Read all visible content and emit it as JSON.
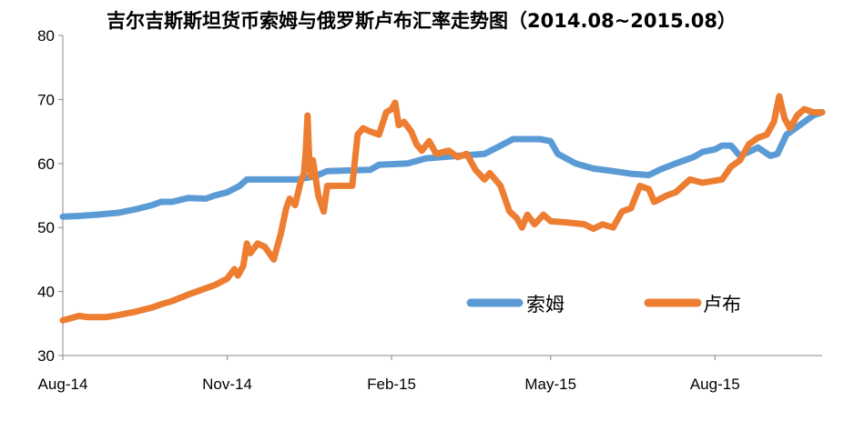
{
  "chart_data": {
    "type": "line",
    "title": "吉尔吉斯斯坦货币索姆与俄罗斯卢布汇率走势图（2014.08~2015.08）",
    "xlabel": "",
    "ylabel": "",
    "ylim": [
      30,
      80
    ],
    "y_ticks": [
      "30",
      "40",
      "50",
      "60",
      "70",
      "80"
    ],
    "x_ticks": [
      "Aug-14",
      "Nov-14",
      "Feb-15",
      "May-15",
      "Aug-15"
    ],
    "grid": false,
    "legend_position": "bottom-right",
    "series": [
      {
        "name": "索姆",
        "color": "#5B9BD5",
        "points": [
          [
            "2014-08-01",
            51.7
          ],
          [
            "2014-08-10",
            51.8
          ],
          [
            "2014-08-20",
            52.0
          ],
          [
            "2014-09-01",
            52.3
          ],
          [
            "2014-09-10",
            52.8
          ],
          [
            "2014-09-20",
            53.5
          ],
          [
            "2014-09-25",
            54.0
          ],
          [
            "2014-10-01",
            54.0
          ],
          [
            "2014-10-10",
            54.6
          ],
          [
            "2014-10-20",
            54.5
          ],
          [
            "2014-10-25",
            55.0
          ],
          [
            "2014-11-01",
            55.5
          ],
          [
            "2014-11-08",
            56.5
          ],
          [
            "2014-11-12",
            57.5
          ],
          [
            "2014-11-20",
            57.5
          ],
          [
            "2014-12-10",
            57.5
          ],
          [
            "2014-12-20",
            58.0
          ],
          [
            "2014-12-27",
            58.8
          ],
          [
            "2015-01-20",
            59.0
          ],
          [
            "2015-01-25",
            59.8
          ],
          [
            "2015-02-10",
            60.0
          ],
          [
            "2015-02-20",
            60.8
          ],
          [
            "2015-03-10",
            61.2
          ],
          [
            "2015-03-25",
            61.5
          ],
          [
            "2015-04-01",
            62.5
          ],
          [
            "2015-04-10",
            63.8
          ],
          [
            "2015-04-25",
            63.8
          ],
          [
            "2015-05-01",
            63.5
          ],
          [
            "2015-05-05",
            61.5
          ],
          [
            "2015-05-15",
            60.0
          ],
          [
            "2015-05-25",
            59.2
          ],
          [
            "2015-06-05",
            58.8
          ],
          [
            "2015-06-15",
            58.4
          ],
          [
            "2015-06-25",
            58.2
          ],
          [
            "2015-07-01",
            59.0
          ],
          [
            "2015-07-10",
            60.0
          ],
          [
            "2015-07-20",
            61.0
          ],
          [
            "2015-07-25",
            61.8
          ],
          [
            "2015-08-01",
            62.2
          ],
          [
            "2015-08-05",
            62.8
          ],
          [
            "2015-08-10",
            62.8
          ],
          [
            "2015-08-15",
            61.2
          ],
          [
            "2015-08-20",
            61.8
          ],
          [
            "2015-08-25",
            62.5
          ],
          [
            "2015-09-01",
            61.2
          ],
          [
            "2015-09-05",
            61.5
          ],
          [
            "2015-09-10",
            64.5
          ],
          [
            "2015-09-15",
            65.5
          ],
          [
            "2015-09-20",
            66.5
          ],
          [
            "2015-09-25",
            67.5
          ],
          [
            "2015-09-30",
            68.0
          ]
        ]
      },
      {
        "name": "卢布",
        "color": "#ED7D31",
        "points": [
          [
            "2014-08-01",
            35.5
          ],
          [
            "2014-08-05",
            35.8
          ],
          [
            "2014-08-10",
            36.2
          ],
          [
            "2014-08-15",
            36.0
          ],
          [
            "2014-08-25",
            36.0
          ],
          [
            "2014-09-01",
            36.3
          ],
          [
            "2014-09-10",
            36.8
          ],
          [
            "2014-09-20",
            37.5
          ],
          [
            "2014-09-25",
            38.0
          ],
          [
            "2014-10-01",
            38.5
          ],
          [
            "2014-10-10",
            39.5
          ],
          [
            "2014-10-20",
            40.5
          ],
          [
            "2014-10-25",
            41.0
          ],
          [
            "2014-11-01",
            42.0
          ],
          [
            "2014-11-05",
            43.5
          ],
          [
            "2014-11-07",
            42.5
          ],
          [
            "2014-11-10",
            44.0
          ],
          [
            "2014-11-12",
            47.5
          ],
          [
            "2014-11-14",
            46.0
          ],
          [
            "2014-11-18",
            47.5
          ],
          [
            "2014-11-22",
            47.0
          ],
          [
            "2014-11-27",
            45.0
          ],
          [
            "2014-12-01",
            49.0
          ],
          [
            "2014-12-04",
            53.0
          ],
          [
            "2014-12-06",
            54.5
          ],
          [
            "2014-12-09",
            53.5
          ],
          [
            "2014-12-12",
            57.0
          ],
          [
            "2014-12-14",
            58.5
          ],
          [
            "2014-12-15",
            62.0
          ],
          [
            "2014-12-16",
            67.5
          ],
          [
            "2014-12-17",
            60.0
          ],
          [
            "2014-12-18",
            58.0
          ],
          [
            "2014-12-19",
            60.5
          ],
          [
            "2014-12-22",
            55.0
          ],
          [
            "2014-12-25",
            52.5
          ],
          [
            "2014-12-27",
            56.5
          ],
          [
            "2015-01-01",
            56.5
          ],
          [
            "2015-01-10",
            56.5
          ],
          [
            "2015-01-13",
            64.5
          ],
          [
            "2015-01-16",
            65.5
          ],
          [
            "2015-01-20",
            65.0
          ],
          [
            "2015-01-25",
            64.5
          ],
          [
            "2015-01-29",
            68.0
          ],
          [
            "2015-02-01",
            68.5
          ],
          [
            "2015-02-03",
            69.5
          ],
          [
            "2015-02-05",
            66.0
          ],
          [
            "2015-02-08",
            66.5
          ],
          [
            "2015-02-12",
            65.0
          ],
          [
            "2015-02-15",
            63.0
          ],
          [
            "2015-02-18",
            62.0
          ],
          [
            "2015-02-22",
            63.5
          ],
          [
            "2015-02-26",
            61.5
          ],
          [
            "2015-03-05",
            62.0
          ],
          [
            "2015-03-10",
            61.0
          ],
          [
            "2015-03-15",
            61.5
          ],
          [
            "2015-03-20",
            59.0
          ],
          [
            "2015-03-25",
            57.5
          ],
          [
            "2015-03-28",
            58.5
          ],
          [
            "2015-04-03",
            56.5
          ],
          [
            "2015-04-08",
            52.5
          ],
          [
            "2015-04-12",
            51.5
          ],
          [
            "2015-04-15",
            50.0
          ],
          [
            "2015-04-18",
            52.0
          ],
          [
            "2015-04-22",
            50.5
          ],
          [
            "2015-04-27",
            52.0
          ],
          [
            "2015-05-01",
            51.0
          ],
          [
            "2015-05-10",
            50.8
          ],
          [
            "2015-05-20",
            50.5
          ],
          [
            "2015-05-25",
            49.8
          ],
          [
            "2015-05-30",
            50.5
          ],
          [
            "2015-06-05",
            50.0
          ],
          [
            "2015-06-10",
            52.5
          ],
          [
            "2015-06-15",
            53.0
          ],
          [
            "2015-06-20",
            56.5
          ],
          [
            "2015-06-25",
            56.0
          ],
          [
            "2015-06-28",
            54.0
          ],
          [
            "2015-07-05",
            55.0
          ],
          [
            "2015-07-10",
            55.5
          ],
          [
            "2015-07-18",
            57.5
          ],
          [
            "2015-07-25",
            57.0
          ],
          [
            "2015-08-05",
            57.5
          ],
          [
            "2015-08-10",
            59.5
          ],
          [
            "2015-08-15",
            60.5
          ],
          [
            "2015-08-20",
            63.0
          ],
          [
            "2015-08-25",
            64.0
          ],
          [
            "2015-08-30",
            64.5
          ],
          [
            "2015-09-03",
            66.5
          ],
          [
            "2015-09-06",
            70.5
          ],
          [
            "2015-09-09",
            67.0
          ],
          [
            "2015-09-12",
            65.5
          ],
          [
            "2015-09-16",
            67.5
          ],
          [
            "2015-09-20",
            68.5
          ],
          [
            "2015-09-25",
            68.0
          ],
          [
            "2015-09-30",
            68.0
          ]
        ]
      }
    ]
  }
}
